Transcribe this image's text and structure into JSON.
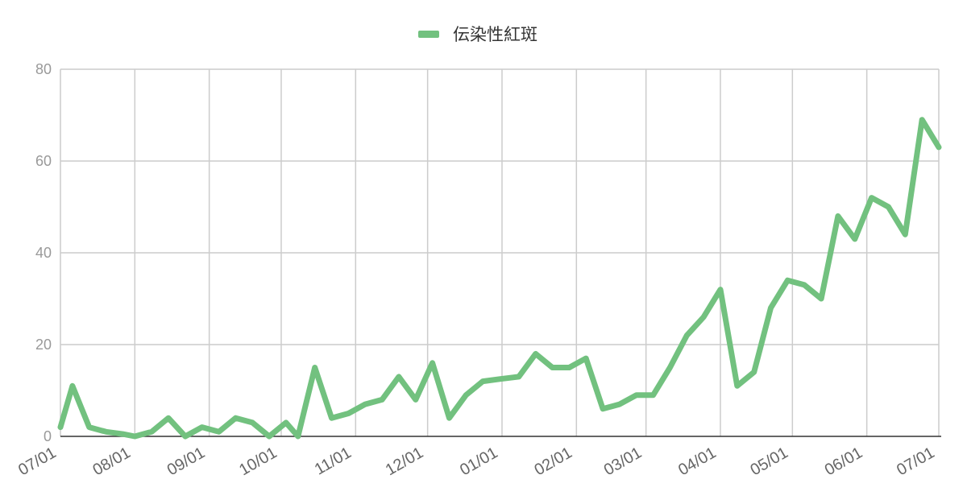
{
  "chart_data": {
    "type": "line",
    "title": "",
    "xlabel": "",
    "ylabel": "",
    "ylim": [
      0,
      80
    ],
    "yticks": [
      0,
      20,
      40,
      60,
      80
    ],
    "grid": true,
    "legend": "top-center",
    "xticks": [
      "07/01",
      "08/01",
      "09/01",
      "10/01",
      "11/01",
      "12/01",
      "01/01",
      "02/01",
      "03/01",
      "04/01",
      "05/01",
      "06/01",
      "07/01"
    ],
    "series": [
      {
        "name": "伝染性紅斑",
        "color": "#72c17f",
        "x": [
          "2023-07-01",
          "2023-07-06",
          "2023-07-13",
          "2023-07-20",
          "2023-07-27",
          "2023-08-01",
          "2023-08-08",
          "2023-08-15",
          "2023-08-22",
          "2023-08-29",
          "2023-09-05",
          "2023-09-12",
          "2023-09-19",
          "2023-09-26",
          "2023-10-03",
          "2023-10-08",
          "2023-10-15",
          "2023-10-22",
          "2023-10-29",
          "2023-11-05",
          "2023-11-12",
          "2023-11-19",
          "2023-11-26",
          "2023-12-03",
          "2023-12-10",
          "2023-12-17",
          "2023-12-24",
          "2023-12-31",
          "2024-01-08",
          "2024-01-15",
          "2024-01-22",
          "2024-01-29",
          "2024-02-05",
          "2024-02-12",
          "2024-02-19",
          "2024-02-26",
          "2024-03-04",
          "2024-03-11",
          "2024-03-18",
          "2024-03-25",
          "2024-04-01",
          "2024-04-08",
          "2024-04-15",
          "2024-04-22",
          "2024-04-29",
          "2024-05-06",
          "2024-05-13",
          "2024-05-20",
          "2024-05-27",
          "2024-06-03",
          "2024-06-10",
          "2024-06-17",
          "2024-06-24",
          "2024-07-01"
        ],
        "y": [
          2,
          11,
          2,
          1,
          0.5,
          0,
          1,
          4,
          0,
          2,
          1,
          4,
          3,
          0,
          3,
          0,
          15,
          4,
          5,
          7,
          8,
          13,
          8,
          16,
          4,
          9,
          12,
          12.5,
          13,
          18,
          15,
          15,
          17,
          6,
          7,
          9,
          9,
          15,
          22,
          26,
          32,
          11,
          14,
          28,
          34,
          33,
          30,
          48,
          43,
          52,
          50,
          44,
          69,
          63
        ]
      }
    ]
  }
}
